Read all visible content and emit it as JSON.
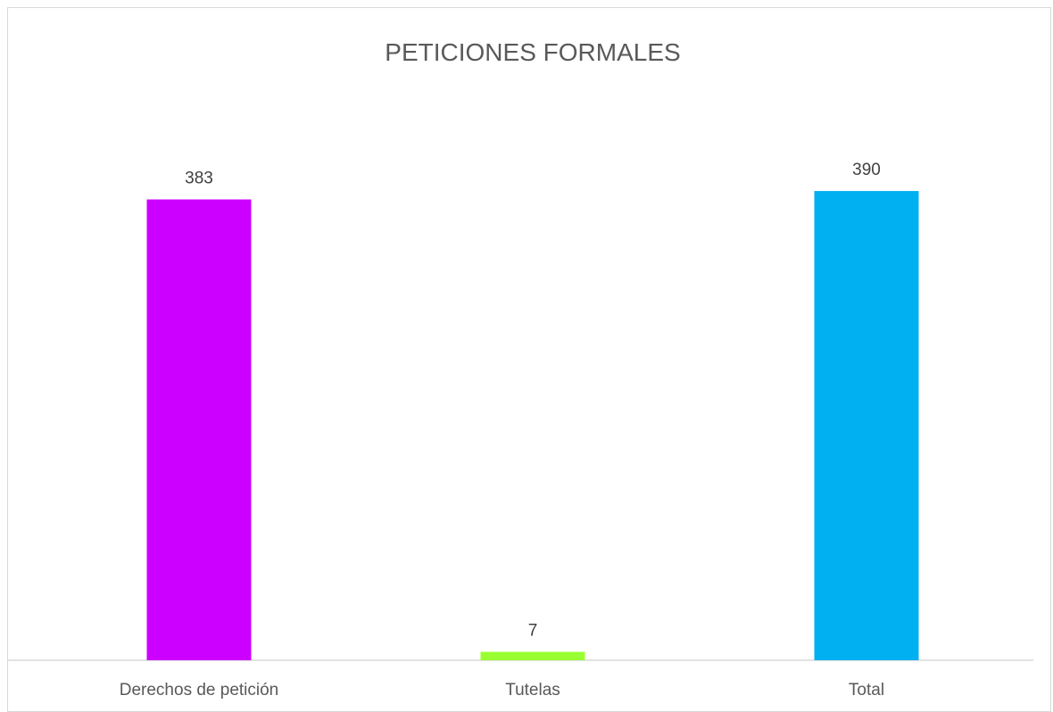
{
  "chart_data": {
    "type": "bar",
    "title": "PETICIONES FORMALES",
    "categories": [
      "Derechos de petición",
      "Tutelas",
      "Total"
    ],
    "series": [
      {
        "values": [
          383,
          7,
          390
        ]
      }
    ],
    "data_labels": [
      "383",
      "7",
      "390"
    ],
    "colors": [
      "#cc00ff",
      "#99ff33",
      "#00b0f0"
    ],
    "ylim": [
      0,
      400
    ],
    "grid": false,
    "legend": "none"
  }
}
